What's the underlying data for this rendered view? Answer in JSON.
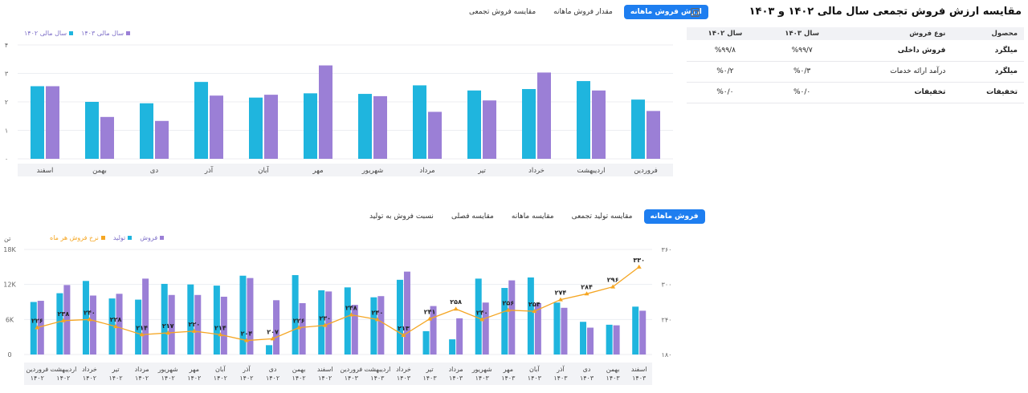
{
  "top_panel": {
    "tabs": [
      {
        "label": "ارزش فروش ماهانه",
        "active": true
      },
      {
        "label": "مقدار فروش ماهانه",
        "active": false
      },
      {
        "label": "مقایسه فروش تجمعی",
        "active": false
      }
    ],
    "legend": [
      {
        "label": "سال مالی ۱۴۰۳",
        "color": "#9b7fd6"
      },
      {
        "label": "سال مالی ۱۴۰۲",
        "color": "#1fb5de"
      }
    ]
  },
  "table": {
    "title": "مقایسه ارزش فروش تجمعی سال مالی ۱۴۰۲ و ۱۴۰۳",
    "headers": [
      "محصول",
      "نوع فروش",
      "سال ۱۴۰۳",
      "سال ۱۴۰۲"
    ],
    "rows": [
      {
        "product": "میلگرد",
        "type": "فروش داخلی",
        "y1403": "%۹۹/۷",
        "y1402": "%۹۹/۸"
      },
      {
        "product": "میلگرد",
        "type": "درآمد ارائه خدمات",
        "y1403": "%۰/۳",
        "y1402": "%۰/۲"
      },
      {
        "product": "تخفیفات",
        "type": "تخفیفات",
        "y1403": "%۰/۰",
        "y1402": "%۰/۰"
      }
    ]
  },
  "bottom_panel": {
    "tabs": [
      {
        "label": "فروش ماهانه",
        "active": true
      },
      {
        "label": "مقایسه تولید تجمعی",
        "active": false
      },
      {
        "label": "مقایسه ماهانه",
        "active": false
      },
      {
        "label": "مقایسه فصلی",
        "active": false
      },
      {
        "label": "نسبت فروش به تولید",
        "active": false
      }
    ],
    "legend": [
      {
        "label": "فروش",
        "color": "#9b7fd6"
      },
      {
        "label": "تولید",
        "color": "#1fb5de"
      },
      {
        "label": "نرخ فروش هر ماه",
        "color": "#f5a623"
      }
    ],
    "left_unit": "تن"
  },
  "chart_data": [
    {
      "type": "bar",
      "categories": [
        "اسفند",
        "بهمن",
        "دی",
        "آذر",
        "آبان",
        "مهر",
        "شهریور",
        "مرداد",
        "تیر",
        "خرداد",
        "اردیبهشت",
        "فروردین"
      ],
      "series": [
        {
          "name": "سال مالی ۱۴۰۲",
          "color": "#1fb5de",
          "values": [
            2.55,
            2.0,
            1.95,
            2.7,
            2.15,
            2.3,
            2.28,
            2.58,
            2.4,
            2.45,
            2.73,
            2.08
          ]
        },
        {
          "name": "سال مالی ۱۴۰۳",
          "color": "#9b7fd6",
          "values": [
            2.55,
            1.47,
            1.33,
            2.22,
            2.25,
            3.28,
            2.2,
            1.65,
            2.05,
            3.03,
            2.4,
            1.68
          ]
        }
      ],
      "y_ticks": [
        "۴",
        "۳",
        "۲",
        "۱",
        "۰"
      ],
      "ylim": [
        0,
        4
      ]
    },
    {
      "type": "bar+line",
      "categories": [
        "اسفند ۱۴۰۳",
        "بهمن ۱۴۰۳",
        "دی ۱۴۰۳",
        "آذر ۱۴۰۳",
        "آبان ۱۴۰۳",
        "مهر ۱۴۰۳",
        "شهریور ۱۴۰۳",
        "مرداد ۱۴۰۳",
        "تیر ۱۴۰۳",
        "خرداد ۱۴۰۳",
        "اردیبهشت ۱۴۰۳",
        "فروردین ۱۴۰۳",
        "اسفند ۱۴۰۲",
        "بهمن ۱۴۰۲",
        "دی ۱۴۰۲",
        "آذر ۱۴۰۲",
        "آبان ۱۴۰۲",
        "مهر ۱۴۰۲",
        "شهریور ۱۴۰۲",
        "مرداد ۱۴۰۲",
        "تیر ۱۴۰۲",
        "خرداد ۱۴۰۲",
        "اردیبهشت ۱۴۰۲",
        "فروردین ۱۴۰۲"
      ],
      "series": [
        {
          "name": "تولید",
          "color": "#1fb5de",
          "axis": "left",
          "values": [
            8200,
            5100,
            5600,
            8900,
            13200,
            11400,
            13000,
            2600,
            4000,
            12800,
            9800,
            11500,
            11000,
            13600,
            1600,
            13500,
            11800,
            12000,
            12100,
            9400,
            9600,
            12600,
            10500,
            9000
          ]
        },
        {
          "name": "فروش",
          "color": "#9b7fd6",
          "axis": "left",
          "values": [
            7500,
            5000,
            4600,
            8000,
            8800,
            12700,
            8900,
            6200,
            8300,
            14200,
            10000,
            8500,
            10800,
            8800,
            9300,
            13100,
            9900,
            10200,
            10200,
            13000,
            10400,
            10100,
            11900,
            9200
          ]
        },
        {
          "name": "نرخ فروش هر ماه",
          "color": "#f5a623",
          "axis": "right",
          "values": [
            330,
            296,
            284,
            274,
            254,
            256,
            240,
            258,
            241,
            213,
            240,
            248,
            230,
            226,
            207,
            204,
            214,
            220,
            217,
            214,
            228,
            240,
            238,
            226
          ],
          "labels": [
            "۳۳۰",
            "۲۹۶",
            "۲۸۴",
            "۲۷۴",
            "۲۵۴",
            "۲۵۶",
            "۲۴۰",
            "۲۵۸",
            "۲۴۱",
            "۲۱۳",
            "۲۴۰",
            "۲۴۸",
            "۲۳۰",
            "۲۲۶",
            "۲۰۷",
            "۲۰۴",
            "۲۱۴",
            "۲۲۰",
            "۲۱۷",
            "۲۱۴",
            "۲۲۸",
            "۲۴۰",
            "۲۳۸",
            "۲۲۶"
          ]
        }
      ],
      "left_ticks": [
        "18K",
        "12K",
        "6K",
        "0"
      ],
      "left_ylim": [
        0,
        18000
      ],
      "right_ticks": [
        "۳۶۰",
        "۳۰۰",
        "۲۴۰",
        "۱۸۰"
      ],
      "right_ylim": [
        180,
        360
      ]
    }
  ]
}
